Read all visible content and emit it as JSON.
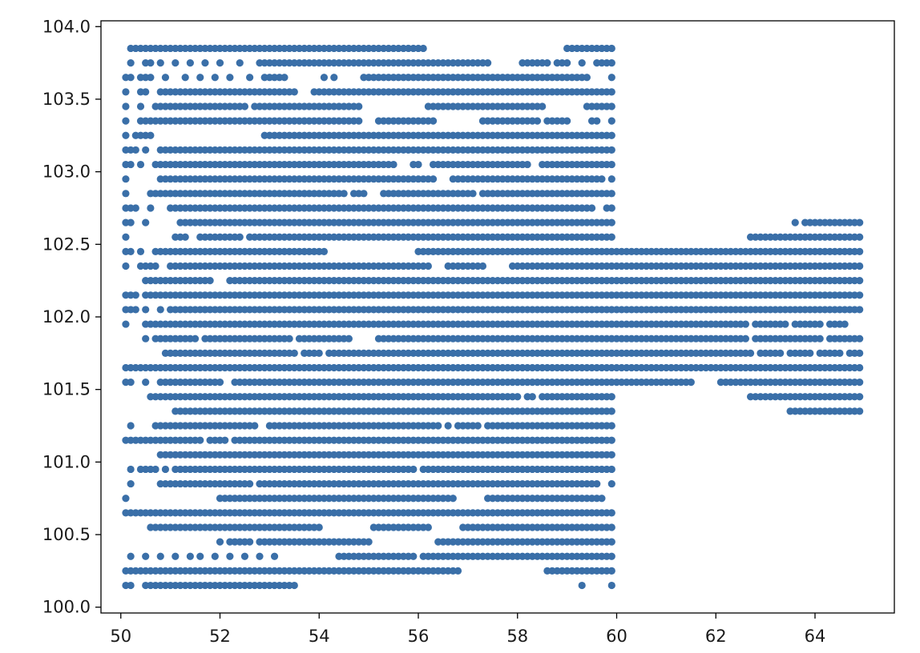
{
  "chart_data": {
    "type": "scatter",
    "title": "",
    "xlabel": "",
    "ylabel": "",
    "xlim": [
      49.6,
      65.6
    ],
    "ylim": [
      99.96,
      104.04
    ],
    "x_ticks": [
      "50",
      "52",
      "54",
      "56",
      "58",
      "60",
      "62",
      "64"
    ],
    "y_ticks": [
      "100.0",
      "100.5",
      "101.0",
      "101.5",
      "102.0",
      "102.5",
      "103.0",
      "103.5",
      "104.0"
    ],
    "grid": false,
    "legend": "none",
    "marker_color": "#3a6fa8",
    "x_step": 0.1,
    "series": [
      {
        "segments": [
          [
            103.85,
            50.2,
            56.1
          ],
          [
            103.85,
            59.0,
            59.9
          ],
          [
            103.75,
            50.2,
            50.2
          ],
          [
            103.75,
            50.5,
            50.6
          ],
          [
            103.75,
            50.8,
            50.8
          ],
          [
            103.75,
            51.1,
            51.1
          ],
          [
            103.75,
            51.4,
            51.4
          ],
          [
            103.75,
            51.7,
            51.7
          ],
          [
            103.75,
            52.0,
            52.0
          ],
          [
            103.75,
            52.4,
            52.4
          ],
          [
            103.75,
            52.8,
            57.4
          ],
          [
            103.75,
            58.1,
            58.6
          ],
          [
            103.75,
            58.8,
            59.0
          ],
          [
            103.75,
            59.3,
            59.3
          ],
          [
            103.75,
            59.6,
            59.9
          ],
          [
            103.65,
            50.1,
            50.2
          ],
          [
            103.65,
            50.4,
            50.6
          ],
          [
            103.65,
            50.9,
            50.9
          ],
          [
            103.65,
            51.3,
            51.3
          ],
          [
            103.65,
            51.6,
            51.6
          ],
          [
            103.65,
            51.9,
            51.9
          ],
          [
            103.65,
            52.2,
            52.2
          ],
          [
            103.65,
            52.6,
            52.6
          ],
          [
            103.65,
            52.9,
            53.3
          ],
          [
            103.65,
            54.1,
            54.1
          ],
          [
            103.65,
            54.3,
            54.3
          ],
          [
            103.65,
            54.9,
            55.5
          ],
          [
            103.65,
            55.6,
            59.4
          ],
          [
            103.65,
            59.9,
            59.9
          ],
          [
            103.55,
            50.1,
            50.1
          ],
          [
            103.55,
            50.4,
            50.5
          ],
          [
            103.55,
            50.8,
            53.5
          ],
          [
            103.55,
            53.9,
            59.9
          ],
          [
            103.45,
            50.1,
            50.1
          ],
          [
            103.45,
            50.4,
            50.4
          ],
          [
            103.45,
            50.7,
            52.5
          ],
          [
            103.45,
            52.7,
            54.8
          ],
          [
            103.45,
            56.2,
            58.5
          ],
          [
            103.45,
            59.4,
            59.9
          ],
          [
            103.35,
            50.1,
            50.1
          ],
          [
            103.35,
            50.4,
            54.8
          ],
          [
            103.35,
            55.2,
            56.3
          ],
          [
            103.35,
            57.3,
            58.4
          ],
          [
            103.35,
            58.6,
            59.0
          ],
          [
            103.35,
            59.5,
            59.6
          ],
          [
            103.35,
            59.9,
            59.9
          ],
          [
            103.25,
            50.1,
            50.1
          ],
          [
            103.25,
            50.3,
            50.6
          ],
          [
            103.25,
            52.9,
            59.9
          ],
          [
            103.15,
            50.1,
            50.3
          ],
          [
            103.15,
            50.5,
            50.5
          ],
          [
            103.15,
            50.8,
            59.9
          ],
          [
            103.05,
            50.1,
            50.2
          ],
          [
            103.05,
            50.4,
            50.4
          ],
          [
            103.05,
            50.7,
            55.5
          ],
          [
            103.05,
            55.9,
            56.0
          ],
          [
            103.05,
            56.3,
            58.2
          ],
          [
            103.05,
            58.5,
            59.9
          ],
          [
            102.95,
            50.1,
            50.1
          ],
          [
            102.95,
            50.8,
            56.3
          ],
          [
            102.95,
            56.7,
            59.7
          ],
          [
            102.95,
            59.9,
            59.9
          ],
          [
            102.85,
            50.1,
            50.1
          ],
          [
            102.85,
            50.6,
            54.5
          ],
          [
            102.85,
            54.7,
            54.9
          ],
          [
            102.85,
            55.3,
            56.5
          ],
          [
            102.85,
            56.6,
            57.1
          ],
          [
            102.85,
            57.3,
            59.9
          ],
          [
            102.75,
            50.1,
            50.3
          ],
          [
            102.75,
            50.6,
            50.6
          ],
          [
            102.75,
            51.0,
            56.0
          ],
          [
            102.75,
            56.1,
            59.5
          ],
          [
            102.75,
            59.8,
            59.9
          ],
          [
            102.65,
            50.1,
            50.2
          ],
          [
            102.65,
            50.5,
            50.5
          ],
          [
            102.65,
            51.2,
            59.9
          ],
          [
            102.65,
            63.6,
            63.6
          ],
          [
            102.65,
            63.8,
            64.9
          ],
          [
            102.55,
            50.1,
            50.1
          ],
          [
            102.55,
            51.1,
            51.3
          ],
          [
            102.55,
            51.6,
            52.4
          ],
          [
            102.55,
            52.6,
            55.3
          ],
          [
            102.55,
            55.4,
            59.9
          ],
          [
            102.55,
            62.7,
            64.9
          ],
          [
            102.45,
            50.1,
            50.2
          ],
          [
            102.45,
            50.4,
            50.4
          ],
          [
            102.45,
            50.7,
            54.1
          ],
          [
            102.45,
            56.0,
            64.9
          ],
          [
            102.35,
            50.1,
            50.1
          ],
          [
            102.35,
            50.4,
            50.7
          ],
          [
            102.35,
            51.0,
            56.2
          ],
          [
            102.35,
            56.6,
            57.3
          ],
          [
            102.35,
            57.9,
            64.9
          ],
          [
            102.25,
            50.5,
            51.8
          ],
          [
            102.25,
            52.2,
            64.9
          ],
          [
            102.15,
            50.1,
            50.3
          ],
          [
            102.15,
            50.5,
            64.9
          ],
          [
            102.05,
            50.1,
            50.3
          ],
          [
            102.05,
            50.5,
            50.5
          ],
          [
            102.05,
            50.8,
            50.8
          ],
          [
            102.05,
            51.0,
            64.9
          ],
          [
            101.95,
            50.1,
            50.1
          ],
          [
            101.95,
            50.5,
            62.6
          ],
          [
            101.95,
            62.8,
            63.4
          ],
          [
            101.95,
            63.6,
            64.1
          ],
          [
            101.95,
            64.3,
            64.6
          ],
          [
            101.85,
            50.5,
            50.5
          ],
          [
            101.85,
            50.7,
            51.5
          ],
          [
            101.85,
            51.7,
            53.4
          ],
          [
            101.85,
            53.6,
            54.6
          ],
          [
            101.85,
            55.2,
            62.6
          ],
          [
            101.85,
            62.8,
            64.1
          ],
          [
            101.85,
            64.3,
            64.9
          ],
          [
            101.75,
            50.9,
            53.5
          ],
          [
            101.75,
            53.7,
            53.8
          ],
          [
            101.75,
            53.9,
            54.0
          ],
          [
            101.75,
            54.2,
            62.7
          ],
          [
            101.75,
            62.9,
            63.3
          ],
          [
            101.75,
            63.5,
            63.9
          ],
          [
            101.75,
            64.1,
            64.5
          ],
          [
            101.75,
            64.7,
            64.9
          ],
          [
            101.65,
            50.1,
            64.9
          ],
          [
            101.55,
            50.1,
            50.2
          ],
          [
            101.55,
            50.5,
            50.5
          ],
          [
            101.55,
            50.8,
            51.9
          ],
          [
            101.55,
            52.0,
            52.0
          ],
          [
            101.55,
            52.3,
            61.5
          ],
          [
            101.55,
            62.1,
            64.9
          ],
          [
            101.45,
            50.6,
            58.0
          ],
          [
            101.45,
            58.2,
            58.3
          ],
          [
            101.45,
            58.5,
            59.9
          ],
          [
            101.45,
            62.7,
            64.9
          ],
          [
            101.35,
            51.1,
            59.9
          ],
          [
            101.35,
            63.5,
            64.9
          ],
          [
            101.25,
            50.2,
            50.2
          ],
          [
            101.25,
            50.7,
            52.7
          ],
          [
            101.25,
            53.0,
            56.4
          ],
          [
            101.25,
            56.6,
            56.6
          ],
          [
            101.25,
            56.8,
            57.2
          ],
          [
            101.25,
            57.4,
            59.9
          ],
          [
            101.15,
            50.1,
            51.6
          ],
          [
            101.15,
            51.8,
            52.1
          ],
          [
            101.15,
            52.3,
            56.2
          ],
          [
            101.15,
            56.3,
            59.9
          ],
          [
            101.05,
            50.8,
            59.9
          ],
          [
            100.95,
            50.2,
            50.2
          ],
          [
            100.95,
            50.4,
            50.7
          ],
          [
            100.95,
            50.9,
            50.9
          ],
          [
            100.95,
            51.1,
            51.9
          ],
          [
            100.95,
            52.0,
            55.9
          ],
          [
            100.95,
            56.1,
            59.9
          ],
          [
            100.85,
            50.2,
            50.2
          ],
          [
            100.85,
            50.8,
            52.6
          ],
          [
            100.85,
            52.8,
            53.6
          ],
          [
            100.85,
            53.7,
            53.8
          ],
          [
            100.85,
            53.9,
            59.6
          ],
          [
            100.85,
            59.9,
            59.9
          ],
          [
            100.75,
            50.1,
            50.1
          ],
          [
            100.75,
            52.0,
            56.7
          ],
          [
            100.75,
            57.4,
            57.5
          ],
          [
            100.75,
            57.6,
            59.7
          ],
          [
            100.65,
            50.1,
            56.0
          ],
          [
            100.65,
            56.1,
            59.9
          ],
          [
            100.55,
            50.6,
            54.0
          ],
          [
            100.55,
            55.1,
            56.2
          ],
          [
            100.55,
            56.9,
            59.9
          ],
          [
            100.45,
            52.0,
            52.0
          ],
          [
            100.45,
            52.2,
            52.6
          ],
          [
            100.45,
            52.8,
            55.0
          ],
          [
            100.45,
            56.4,
            59.9
          ],
          [
            100.35,
            50.2,
            50.2
          ],
          [
            100.35,
            50.5,
            50.5
          ],
          [
            100.35,
            50.8,
            50.8
          ],
          [
            100.35,
            51.1,
            51.1
          ],
          [
            100.35,
            51.4,
            51.4
          ],
          [
            100.35,
            51.6,
            51.6
          ],
          [
            100.35,
            51.9,
            51.9
          ],
          [
            100.35,
            52.2,
            52.2
          ],
          [
            100.35,
            52.5,
            52.5
          ],
          [
            100.35,
            52.8,
            52.8
          ],
          [
            100.35,
            53.1,
            53.1
          ],
          [
            100.35,
            54.4,
            55.9
          ],
          [
            100.35,
            56.1,
            58.6
          ],
          [
            100.35,
            58.7,
            59.0
          ],
          [
            100.35,
            59.1,
            59.9
          ],
          [
            100.25,
            50.1,
            56.8
          ],
          [
            100.25,
            58.6,
            59.9
          ],
          [
            100.15,
            50.1,
            50.2
          ],
          [
            100.15,
            50.5,
            53.5
          ],
          [
            100.15,
            59.3,
            59.3
          ],
          [
            100.15,
            59.9,
            59.9
          ]
        ]
      }
    ]
  }
}
